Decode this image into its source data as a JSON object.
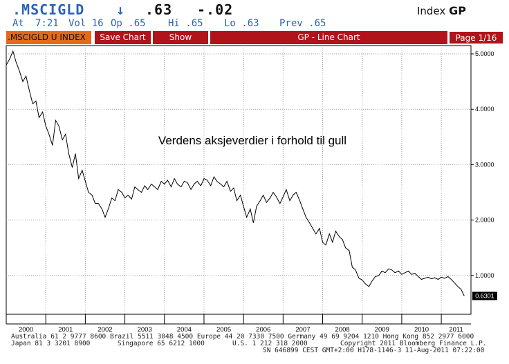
{
  "header": {
    "ticker": ".MSCIGLD",
    "arrow": "↓",
    "last": ".63",
    "change": "-.02",
    "index_label": "Index",
    "index_code": "GP"
  },
  "quote": {
    "at": "At",
    "time": "7:21",
    "vol": "Vol 16",
    "op": "Op .65",
    "hi": "Hi .65",
    "lo": "Lo .63",
    "prev": "Prev .65"
  },
  "toolbar": {
    "security": ".MSCIGLD U INDEX",
    "save_chart": "Save Chart",
    "show": "Show",
    "title": "GP - Line Chart",
    "page": "Page 1/16"
  },
  "chart_data": {
    "type": "line",
    "title": "Verdens aksjeverdier i forhold til gull",
    "xlabel": "",
    "ylabel": "",
    "ylim": [
      0.3,
      5.15
    ],
    "xlim": [
      2000.0,
      2011.75
    ],
    "grid": true,
    "y_ticks": [
      1.0,
      2.0,
      3.0,
      4.0,
      5.0
    ],
    "y_tick_labels": [
      "1.0000",
      "2.0000",
      "3.0000",
      "4.0000",
      "5.0000"
    ],
    "x_tick_labels": [
      "2000",
      "2001",
      "2002",
      "2003",
      "2004",
      "2005",
      "2006",
      "2007",
      "2008",
      "2009",
      "2010",
      "2011"
    ],
    "last_value_label": "0.6301",
    "series": [
      {
        "x": [
          2000.0,
          2000.08,
          2000.17,
          2000.25,
          2000.33,
          2000.42,
          2000.5,
          2000.58,
          2000.67,
          2000.75,
          2000.83,
          2000.92,
          2001.0,
          2001.08,
          2001.17,
          2001.25,
          2001.33,
          2001.42,
          2001.5,
          2001.58,
          2001.67,
          2001.75,
          2001.83,
          2001.92,
          2002.0,
          2002.08,
          2002.17,
          2002.25,
          2002.33,
          2002.42,
          2002.5,
          2002.58,
          2002.67,
          2002.75,
          2002.83,
          2002.92,
          2003.0,
          2003.08,
          2003.17,
          2003.25,
          2003.33,
          2003.42,
          2003.5,
          2003.58,
          2003.67,
          2003.75,
          2003.83,
          2003.92,
          2004.0,
          2004.08,
          2004.17,
          2004.25,
          2004.33,
          2004.42,
          2004.5,
          2004.58,
          2004.67,
          2004.75,
          2004.83,
          2004.92,
          2005.0,
          2005.08,
          2005.17,
          2005.25,
          2005.33,
          2005.42,
          2005.5,
          2005.58,
          2005.67,
          2005.75,
          2005.83,
          2005.92,
          2006.0,
          2006.08,
          2006.17,
          2006.25,
          2006.33,
          2006.42,
          2006.5,
          2006.58,
          2006.67,
          2006.75,
          2006.83,
          2006.92,
          2007.0,
          2007.08,
          2007.17,
          2007.25,
          2007.33,
          2007.42,
          2007.5,
          2007.58,
          2007.67,
          2007.75,
          2007.83,
          2007.92,
          2008.0,
          2008.08,
          2008.17,
          2008.25,
          2008.33,
          2008.42,
          2008.5,
          2008.58,
          2008.67,
          2008.75,
          2008.83,
          2008.92,
          2009.0,
          2009.08,
          2009.17,
          2009.25,
          2009.33,
          2009.42,
          2009.5,
          2009.58,
          2009.67,
          2009.75,
          2009.83,
          2009.92,
          2010.0,
          2010.08,
          2010.17,
          2010.25,
          2010.33,
          2010.42,
          2010.5,
          2010.58,
          2010.67,
          2010.75,
          2010.83,
          2010.92,
          2011.0,
          2011.08,
          2011.17,
          2011.25,
          2011.33,
          2011.42,
          2011.5,
          2011.58
        ],
        "values": [
          4.8,
          4.9,
          5.05,
          4.85,
          4.7,
          4.5,
          4.6,
          4.35,
          4.1,
          4.15,
          3.85,
          3.95,
          3.7,
          3.55,
          3.35,
          3.8,
          3.7,
          3.45,
          3.55,
          3.2,
          2.95,
          3.2,
          2.75,
          2.9,
          2.7,
          2.5,
          2.45,
          2.3,
          2.3,
          2.2,
          2.05,
          2.2,
          2.4,
          2.35,
          2.55,
          2.5,
          2.4,
          2.45,
          2.38,
          2.6,
          2.55,
          2.5,
          2.62,
          2.55,
          2.65,
          2.6,
          2.55,
          2.7,
          2.65,
          2.72,
          2.6,
          2.75,
          2.65,
          2.6,
          2.7,
          2.68,
          2.55,
          2.65,
          2.7,
          2.62,
          2.75,
          2.72,
          2.62,
          2.78,
          2.7,
          2.65,
          2.6,
          2.7,
          2.52,
          2.58,
          2.35,
          2.45,
          2.25,
          2.05,
          2.2,
          1.95,
          2.25,
          2.35,
          2.45,
          2.32,
          2.4,
          2.5,
          2.42,
          2.3,
          2.42,
          2.55,
          2.35,
          2.45,
          2.5,
          2.35,
          2.2,
          2.05,
          1.95,
          1.85,
          1.75,
          1.85,
          1.6,
          1.55,
          1.75,
          1.6,
          1.8,
          1.7,
          1.65,
          1.5,
          1.45,
          1.15,
          1.1,
          0.95,
          0.92,
          0.85,
          0.8,
          0.9,
          0.98,
          1.0,
          1.08,
          1.05,
          1.12,
          1.1,
          1.05,
          1.08,
          1.02,
          1.05,
          1.08,
          1.02,
          1.04,
          0.98,
          0.93,
          0.95,
          0.97,
          0.94,
          0.96,
          0.93,
          0.97,
          0.95,
          0.98,
          0.93,
          0.87,
          0.8,
          0.75,
          0.63
        ]
      }
    ]
  },
  "footer": {
    "line1": "Australia 61 2 9777 8600 Brazil 5511 3048 4500 Europe 44 20 7330 7500 Germany 49 69 9204 1210 Hong Kong 852 2977 6000",
    "line2a": "Japan 81 3 3201 8900",
    "line2b": "Singapore 65 6212 1000",
    "line2c": "U.S. 1 212 318 2000",
    "line2d": "Copyright 2011 Bloomberg Finance L.P.",
    "line3": "SN 646899 CEST GMT+2:00 H178-1146-3 11-Aug-2011 07:22:00"
  },
  "colors": {
    "ticker_blue": "#2b63b8",
    "toolbar_red": "#b0131a",
    "toolbar_orange": "#e36a1a",
    "line": "#000000",
    "grid": "#9a9a9a"
  }
}
